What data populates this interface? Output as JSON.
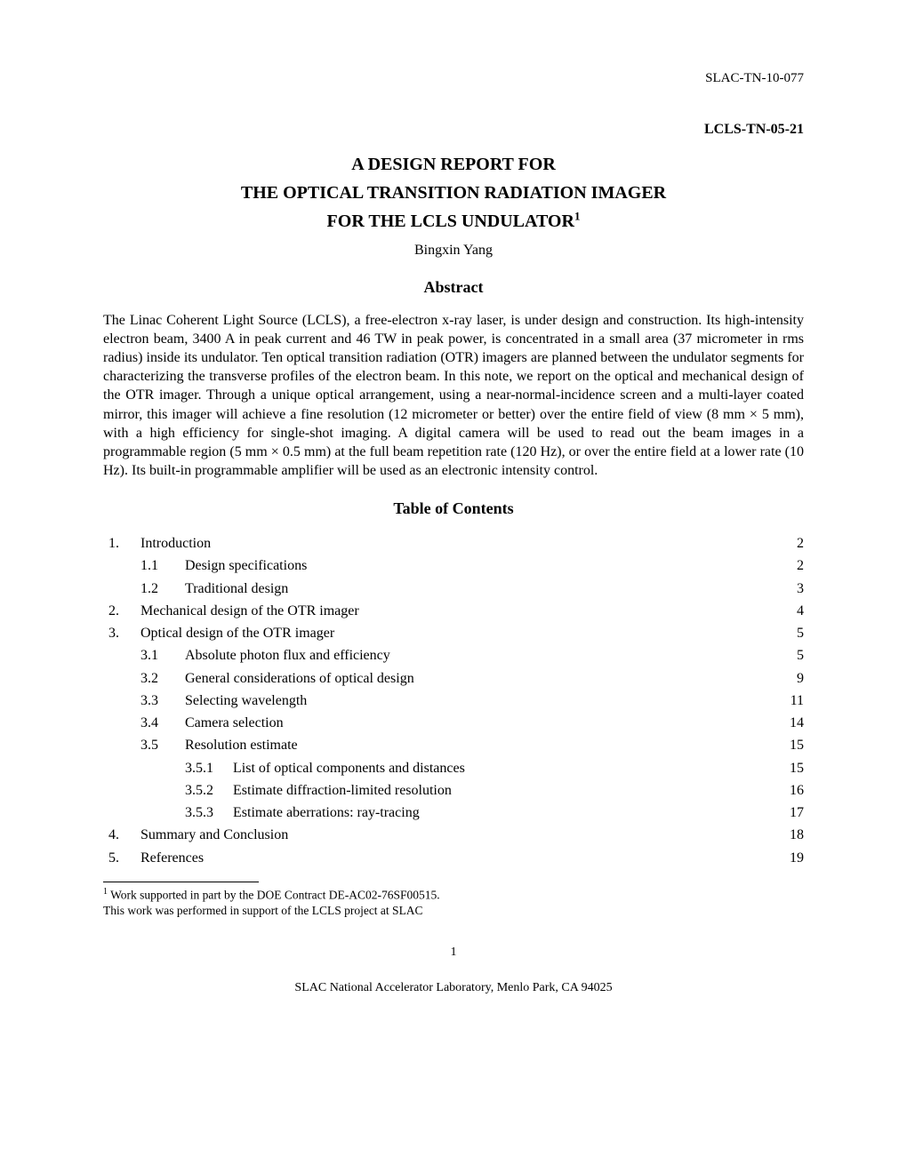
{
  "header": {
    "report_id": "SLAC-TN-10-077",
    "doc_number": "LCLS-TN-05-21"
  },
  "title": {
    "line1": "A DESIGN REPORT FOR",
    "line2": "THE OPTICAL TRANSITION RADIATION IMAGER",
    "line3": "FOR THE LCLS UNDULATOR",
    "superscript": "1"
  },
  "author": "Bingxin Yang",
  "abstract": {
    "heading": "Abstract",
    "body": "The Linac Coherent Light Source (LCLS), a free-electron x-ray laser, is under design and construction. Its high-intensity electron beam, 3400 A in peak current and 46 TW in peak power, is concentrated in a small area (37 micrometer in rms radius) inside its undulator. Ten optical transition radiation (OTR) imagers are planned between the undulator segments for characterizing the transverse profiles of the electron beam. In this note, we report on the optical and mechanical design of the OTR imager. Through a unique optical arrangement, using a near-normal-incidence screen and a multi-layer coated mirror, this imager will achieve a fine resolution (12 micrometer or better) over the entire field of view (8 mm × 5 mm), with a high efficiency for single-shot imaging. A digital camera will be used to read out the beam images in a programmable region (5 mm × 0.5 mm) at the full beam repetition rate (120 Hz), or over the entire field at a lower rate (10 Hz). Its built-in programmable amplifier will be used as an electronic intensity control."
  },
  "toc": {
    "heading": "Table of Contents",
    "entries": [
      {
        "level": 1,
        "num": "1.",
        "title": "Introduction",
        "page": "2"
      },
      {
        "level": 2,
        "num": "1.1",
        "title": "Design specifications",
        "page": "2"
      },
      {
        "level": 2,
        "num": "1.2",
        "title": "Traditional design",
        "page": "3"
      },
      {
        "level": 1,
        "num": "2.",
        "title": "Mechanical design of the OTR imager",
        "page": "4"
      },
      {
        "level": 1,
        "num": "3.",
        "title": "Optical design of the OTR imager",
        "page": "5"
      },
      {
        "level": 2,
        "num": "3.1",
        "title": "Absolute photon flux and efficiency",
        "page": "5"
      },
      {
        "level": 2,
        "num": "3.2",
        "title": "General considerations of optical design",
        "page": "9"
      },
      {
        "level": 2,
        "num": "3.3",
        "title": "Selecting wavelength",
        "page": "11"
      },
      {
        "level": 2,
        "num": "3.4",
        "title": "Camera selection",
        "page": "14"
      },
      {
        "level": 2,
        "num": "3.5",
        "title": "Resolution estimate",
        "page": "15"
      },
      {
        "level": 3,
        "num": "3.5.1",
        "title": "List of optical components and distances",
        "page": "15"
      },
      {
        "level": 3,
        "num": "3.5.2",
        "title": "Estimate diffraction-limited resolution",
        "page": "16"
      },
      {
        "level": 3,
        "num": "3.5.3",
        "title": "Estimate aberrations: ray-tracing",
        "page": "17"
      },
      {
        "level": 1,
        "num": "4.",
        "title": "Summary and Conclusion",
        "page": "18"
      },
      {
        "level": 1,
        "num": "5.",
        "title": "References",
        "page": "19"
      }
    ]
  },
  "footnote": {
    "marker": "1",
    "line1": " Work supported in part by the DOE Contract DE-AC02-76SF00515.",
    "line2": "This work was performed in support of the LCLS project at SLAC"
  },
  "page_number": "1",
  "footer": {
    "org": "SLAC National Accelerator Laboratory, Menlo Park, CA 94025"
  }
}
